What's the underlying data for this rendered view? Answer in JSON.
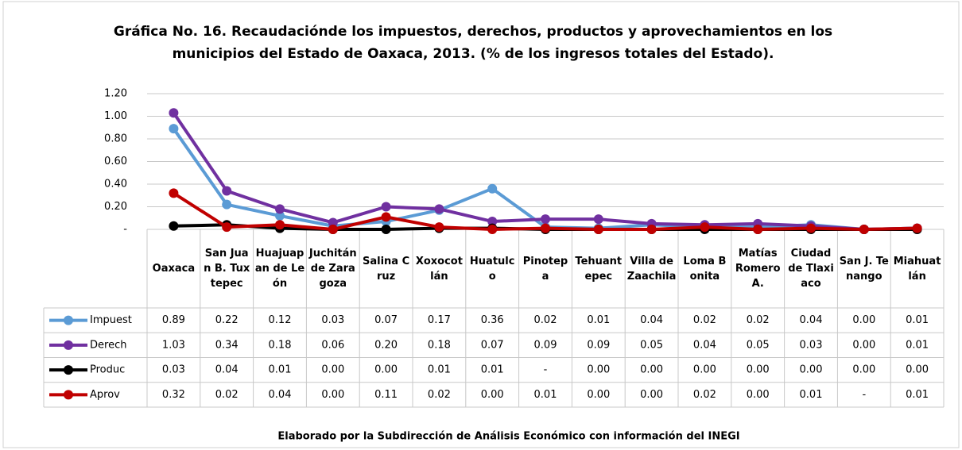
{
  "chart_data": {
    "type": "line",
    "title": "Gráfica No. 16. Recaudaciónde los impuestos, derechos, productos y aprovechamientos en los",
    "subtitle": "municipios del Estado de Oaxaca, 2013. (% de los ingresos totales del Estado).",
    "footer": "Elaborado por la Subdirección de Análisis Económico con información del INEGI",
    "categories": [
      "Oaxaca",
      "San Juan B. Tuxtepec",
      "Huajuapan de León",
      "Juchitán de Zaragoza",
      "Salina Cruz",
      "Xoxocotlán",
      "Huatulco",
      "Pinotepa",
      "Tehuantepec",
      "Villa de Zaachila",
      "Loma Bonita",
      "Matías Romero A.",
      "Ciudad de Tlaxiaco",
      "San J. Tenango",
      "Miahuatlán"
    ],
    "ylim": [
      0,
      1.2
    ],
    "yticks": [
      {
        "value": 0,
        "label": "-"
      },
      {
        "value": 0.2,
        "label": "0.20"
      },
      {
        "value": 0.4,
        "label": "0.40"
      },
      {
        "value": 0.6,
        "label": "0.60"
      },
      {
        "value": 0.8,
        "label": "0.80"
      },
      {
        "value": 1.0,
        "label": "1.00"
      },
      {
        "value": 1.2,
        "label": "1.20"
      }
    ],
    "grid": true,
    "series": [
      {
        "name": "Impuest",
        "color": "#5b9bd5",
        "values": [
          0.89,
          0.22,
          0.12,
          0.03,
          0.07,
          0.17,
          0.36,
          0.02,
          0.01,
          0.04,
          0.02,
          0.02,
          0.04,
          0,
          0.01
        ],
        "value_labels": [
          "0.89",
          "0.22",
          "0.12",
          "0.03",
          "0.07",
          "0.17",
          "0.36",
          "0.02",
          "0.01",
          "0.04",
          "0.02",
          "0.02",
          "0.04",
          "0.00",
          "0.01"
        ]
      },
      {
        "name": "Derech",
        "color": "#7030a0",
        "values": [
          1.03,
          0.34,
          0.18,
          0.06,
          0.2,
          0.18,
          0.07,
          0.09,
          0.09,
          0.05,
          0.04,
          0.05,
          0.03,
          0,
          0.01
        ],
        "value_labels": [
          "1.03",
          "0.34",
          "0.18",
          "0.06",
          "0.20",
          "0.18",
          "0.07",
          "0.09",
          "0.09",
          "0.05",
          "0.04",
          "0.05",
          "0.03",
          "0.00",
          "0.01"
        ]
      },
      {
        "name": "Produc",
        "color": "#000000",
        "values": [
          0.03,
          0.04,
          0.01,
          0,
          0,
          0.01,
          0.01,
          0,
          0,
          0,
          0,
          0,
          0,
          0,
          0
        ],
        "value_labels": [
          "0.03",
          "0.04",
          "0.01",
          "0.00",
          "0.00",
          "0.01",
          "0.01",
          "-",
          "0.00",
          "0.00",
          "0.00",
          "0.00",
          "0.00",
          "0.00",
          "0.00"
        ]
      },
      {
        "name": "Aprov",
        "color": "#c00000",
        "values": [
          0.32,
          0.02,
          0.04,
          0,
          0.11,
          0.02,
          0,
          0.01,
          0,
          0,
          0.02,
          0,
          0.01,
          0,
          0.01
        ],
        "value_labels": [
          "0.32",
          "0.02",
          "0.04",
          "0.00",
          "0.11",
          "0.02",
          "0.00",
          "0.01",
          "0.00",
          "0.00",
          "0.02",
          "0.00",
          "0.01",
          "-",
          "0.01"
        ]
      }
    ]
  }
}
